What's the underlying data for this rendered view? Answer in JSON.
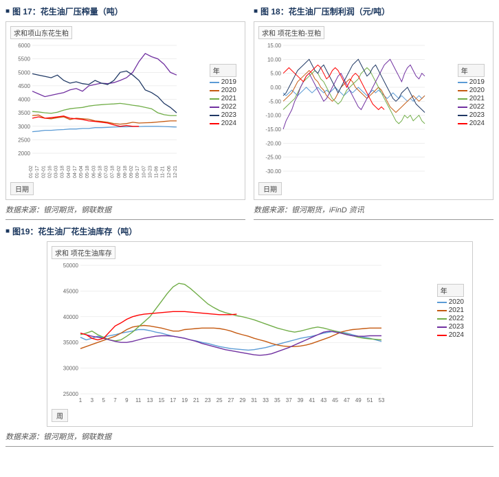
{
  "chart17": {
    "title": "图 17：花生油厂压榨量（吨）",
    "series_label": "求和项山东花生粕",
    "x_axis_label": "日期",
    "source": "数据来源：银河期货，钢联数据",
    "legend_header": "年",
    "ylim": [
      2000,
      6000
    ],
    "yticks": [
      2000,
      2500,
      3000,
      3500,
      4000,
      4500,
      5000,
      5500,
      6000
    ],
    "xticks": [
      "01-02",
      "01-17",
      "02-01",
      "02-16",
      "03-03",
      "03-18",
      "04-03",
      "04-17",
      "05-04",
      "05-18",
      "06-03",
      "06-18",
      "07-03",
      "07-18",
      "08-02",
      "08-18",
      "09-02",
      "09-17",
      "10-07",
      "10-23",
      "11-06",
      "11-21",
      "12-06",
      "12-21"
    ],
    "colors": {
      "2019": "#5b9bd5",
      "2020": "#c55a11",
      "2021": "#70ad47",
      "2022": "#7030a0",
      "2023": "#1f3864",
      "2024": "#ff0000"
    },
    "series": {
      "2019": [
        2800,
        2820,
        2850,
        2850,
        2870,
        2880,
        2900,
        2900,
        2920,
        2920,
        2950,
        2950,
        2960,
        2970,
        2980,
        2980,
        2990,
        2990,
        3000,
        3000,
        3000,
        2990,
        2980,
        2970
      ],
      "2020": [
        3400,
        3420,
        3300,
        3280,
        3320,
        3350,
        3250,
        3300,
        3280,
        3260,
        3200,
        3180,
        3150,
        3100,
        3080,
        3100,
        3150,
        3120,
        3130,
        3140,
        3160,
        3180,
        3200,
        3200
      ],
      "2021": [
        3550,
        3530,
        3500,
        3480,
        3520,
        3600,
        3650,
        3680,
        3700,
        3750,
        3780,
        3800,
        3820,
        3830,
        3850,
        3820,
        3780,
        3750,
        3700,
        3650,
        3500,
        3430,
        3400,
        3400
      ],
      "2022": [
        4300,
        4200,
        4100,
        4150,
        4200,
        4250,
        4350,
        4400,
        4300,
        4500,
        4550,
        4600,
        4580,
        4620,
        4700,
        4800,
        5000,
        5400,
        5700,
        5580,
        5500,
        5300,
        5000,
        4900
      ],
      "2023": [
        4950,
        4900,
        4850,
        4800,
        4900,
        4700,
        4600,
        4650,
        4580,
        4550,
        4700,
        4600,
        4550,
        4700,
        5000,
        5050,
        4900,
        4700,
        4350,
        4250,
        4100,
        3850,
        3700,
        3500
      ],
      "2024": [
        3300,
        3350,
        3300,
        3320,
        3350,
        3380,
        3300,
        3280,
        3250,
        3200,
        3180,
        3150,
        3120,
        3050,
        3000,
        3030,
        3000,
        3000
      ]
    }
  },
  "chart18": {
    "title": "图 18：花生油厂压制利润（元/吨）",
    "series_label": "求和 项花生粕-豆粕",
    "x_axis_label": "日期",
    "source": "数据来源：银河期货，iFinD 资讯",
    "legend_header": "年",
    "ylim": [
      -30,
      15
    ],
    "yticks": [
      -30,
      -25,
      -20,
      -15,
      -10,
      -5,
      0,
      5,
      10,
      15
    ],
    "colors": {
      "2019": "#5b9bd5",
      "2020": "#c55a11",
      "2021": "#70ad47",
      "2022": "#7030a0",
      "2023": "#1f3864",
      "2024": "#ff0000"
    },
    "series": {
      "2019": [
        -2,
        -3,
        -2,
        -1,
        -2,
        -3,
        -2,
        -1,
        0,
        -1,
        -2,
        -1,
        0,
        -1,
        -2,
        -1,
        -2,
        -1,
        0,
        -1,
        -2,
        -3,
        -2,
        -1,
        -2,
        -1,
        0,
        -1,
        -2,
        -3,
        -2,
        -1,
        -2,
        -1,
        -2,
        -3,
        -4,
        -3,
        -2,
        -3,
        -4,
        -3,
        -4,
        -5,
        -4,
        -5,
        -4,
        -3,
        -4,
        -3
      ],
      "2020": [
        -5,
        -4,
        -3,
        -2,
        0,
        2,
        3,
        4,
        5,
        6,
        5,
        3,
        2,
        0,
        -1,
        -3,
        -4,
        -5,
        -4,
        -2,
        0,
        1,
        2,
        3,
        2,
        0,
        -1,
        -2,
        -3,
        -4,
        -3,
        -2,
        -1,
        0,
        -1,
        -3,
        -5,
        -7,
        -8,
        -9,
        -8,
        -7,
        -6,
        -5,
        -4,
        -3,
        -4,
        -5,
        -4,
        -3
      ],
      "2021": [
        -8,
        -7,
        -6,
        -5,
        -4,
        -2,
        0,
        2,
        3,
        4,
        5,
        6,
        5,
        3,
        2,
        0,
        -2,
        -4,
        -5,
        -6,
        -5,
        -3,
        -1,
        0,
        1,
        2,
        3,
        5,
        6,
        7,
        6,
        4,
        2,
        0,
        -2,
        -4,
        -6,
        -8,
        -10,
        -12,
        -13,
        -12,
        -10,
        -11,
        -10,
        -12,
        -11,
        -10,
        -12,
        -13
      ],
      "2022": [
        -15,
        -12,
        -10,
        -8,
        -5,
        -3,
        0,
        2,
        4,
        5,
        3,
        1,
        -1,
        -3,
        -5,
        -4,
        -2,
        0,
        2,
        4,
        5,
        3,
        1,
        -1,
        -3,
        -5,
        -7,
        -8,
        -6,
        -4,
        -2,
        0,
        2,
        4,
        6,
        8,
        9,
        10,
        8,
        6,
        4,
        2,
        5,
        7,
        8,
        6,
        4,
        3,
        5,
        4
      ],
      "2023": [
        -3,
        -2,
        0,
        2,
        4,
        6,
        7,
        8,
        9,
        10,
        8,
        6,
        5,
        7,
        8,
        6,
        4,
        2,
        0,
        -2,
        0,
        2,
        4,
        6,
        8,
        9,
        10,
        8,
        6,
        4,
        5,
        7,
        8,
        6,
        4,
        2,
        0,
        -2,
        -4,
        -5,
        -4,
        -2,
        -1,
        0,
        -2,
        -4,
        -6,
        -7,
        -8,
        -9
      ],
      "2024": [
        5,
        6,
        7,
        6,
        5,
        4,
        3,
        2,
        4,
        5,
        6,
        7,
        8,
        7,
        5,
        3,
        4,
        6,
        7,
        6,
        4,
        2,
        0,
        2,
        4,
        5,
        4,
        2,
        0,
        -2,
        -4,
        -6,
        -7,
        -8,
        -7,
        -8
      ]
    }
  },
  "chart19": {
    "title": "图19：花生油厂花生油库存（吨）",
    "series_label": "求和 项花生油库存",
    "x_axis_label": "周",
    "source": "数据来源：银河期货，钢联数据",
    "legend_header": "年",
    "ylim": [
      25000,
      50000
    ],
    "yticks": [
      25000,
      30000,
      35000,
      40000,
      45000,
      50000
    ],
    "xticks": [
      1,
      3,
      5,
      7,
      9,
      11,
      13,
      15,
      17,
      19,
      21,
      23,
      25,
      27,
      29,
      31,
      33,
      35,
      37,
      39,
      41,
      43,
      45,
      47,
      49,
      51,
      53
    ],
    "colors": {
      "2020": "#5b9bd5",
      "2021": "#c55a11",
      "2022": "#70ad47",
      "2023": "#7030a0",
      "2024": "#ff0000"
    },
    "series": {
      "2020": [
        36000,
        35500,
        35800,
        36200,
        36000,
        36300,
        36500,
        36800,
        37000,
        37200,
        37500,
        37500,
        37300,
        37000,
        36800,
        36500,
        36200,
        36000,
        35800,
        35500,
        35300,
        35000,
        34800,
        34500,
        34200,
        34000,
        33800,
        33700,
        33600,
        33500,
        33600,
        33800,
        34000,
        34300,
        34600,
        34900,
        35200,
        35500,
        35800,
        36000,
        36200,
        36500,
        36800,
        37000,
        37200,
        37000,
        36800,
        36500,
        36200,
        36000,
        35800,
        35500,
        35200
      ],
      "2021": [
        33800,
        34200,
        34600,
        35000,
        35400,
        35800,
        36200,
        36800,
        37500,
        38000,
        38200,
        38300,
        38200,
        38000,
        37800,
        37500,
        37200,
        37200,
        37500,
        37600,
        37700,
        37800,
        37800,
        37800,
        37700,
        37500,
        37200,
        36800,
        36500,
        36200,
        35800,
        35500,
        35200,
        34800,
        34500,
        34300,
        34200,
        34200,
        34300,
        34500,
        34800,
        35200,
        35600,
        36000,
        36500,
        37000,
        37300,
        37500,
        37600,
        37700,
        37800,
        37800,
        37800
      ],
      "2022": [
        36500,
        36800,
        37200,
        36500,
        36000,
        35500,
        35300,
        35500,
        36200,
        37000,
        38000,
        39000,
        40000,
        41500,
        43000,
        44500,
        45800,
        46500,
        46300,
        45500,
        44500,
        43500,
        42500,
        41800,
        41200,
        40800,
        40500,
        40200,
        40000,
        39700,
        39400,
        39000,
        38600,
        38200,
        37800,
        37500,
        37200,
        37000,
        37200,
        37500,
        37800,
        38000,
        37800,
        37500,
        37200,
        36900,
        36600,
        36300,
        36000,
        35800,
        35700,
        35600,
        35500
      ],
      "2023": [
        36800,
        36500,
        36200,
        36000,
        35800,
        35500,
        35200,
        35000,
        35000,
        35200,
        35500,
        35800,
        36000,
        36200,
        36300,
        36300,
        36200,
        36000,
        35800,
        35500,
        35200,
        34800,
        34500,
        34200,
        33900,
        33600,
        33400,
        33200,
        33000,
        32800,
        32600,
        32500,
        32600,
        32800,
        33200,
        33600,
        34000,
        34500,
        35000,
        35500,
        36000,
        36500,
        37000,
        37200,
        37000,
        36800,
        36500,
        36300,
        36200,
        36200,
        36300,
        36300,
        36300
      ],
      "2024": [
        36800,
        36500,
        35800,
        35500,
        35800,
        37000,
        38200,
        38800,
        39500,
        40000,
        40300,
        40500,
        40600,
        40700,
        40800,
        40900,
        41000,
        41000,
        41000,
        40900,
        40800,
        40700,
        40600,
        40500,
        40400,
        40400,
        40400,
        40500
      ]
    }
  }
}
